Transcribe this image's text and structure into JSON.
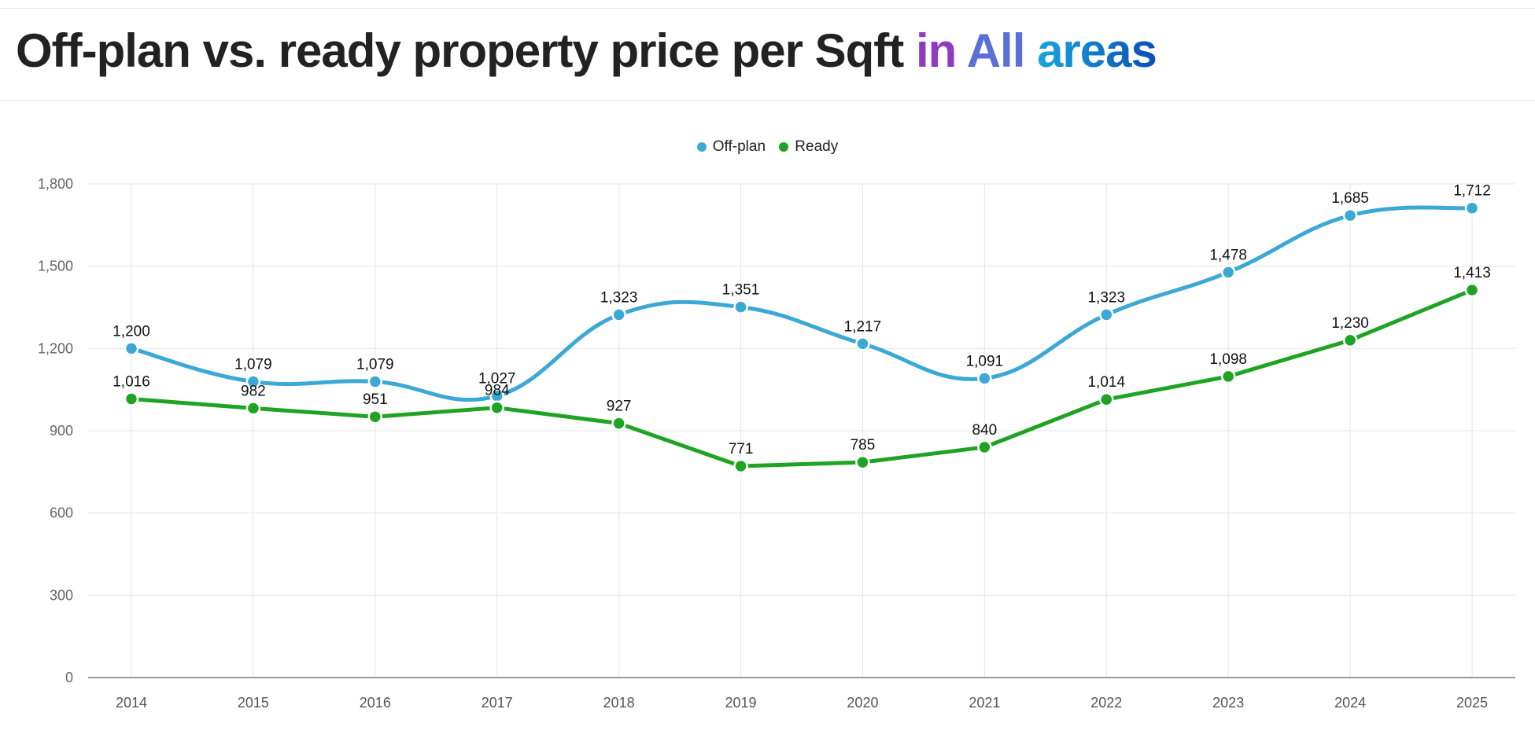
{
  "header": {
    "title_main": "Off-plan vs. ready property price per Sqft",
    "title_in": "in",
    "title_all": "All",
    "title_areas": "areas"
  },
  "chart_data": {
    "type": "line",
    "title": "Off-plan vs. ready property price per Sqft in All areas",
    "xlabel": "",
    "ylabel": "",
    "categories": [
      "2014",
      "2015",
      "2016",
      "2017",
      "2018",
      "2019",
      "2020",
      "2021",
      "2022",
      "2023",
      "2024",
      "2025"
    ],
    "ylim": [
      0,
      1800
    ],
    "yticks": [
      "0",
      "300",
      "600",
      "900",
      "1,200",
      "1,500",
      "1,800"
    ],
    "grid": true,
    "legend_position": "top-center",
    "series": [
      {
        "name": "Off-plan",
        "color": "#3ba8d6",
        "smooth": true,
        "values": [
          1200,
          1079,
          1079,
          1027,
          1323,
          1351,
          1217,
          1091,
          1323,
          1478,
          1685,
          1712
        ],
        "labels": [
          "1,200",
          "1,079",
          "1,079",
          "1,027",
          "1,323",
          "1,351",
          "1,217",
          "1,091",
          "1,323",
          "1,478",
          "1,685",
          "1,712"
        ]
      },
      {
        "name": "Ready",
        "color": "#1fa323",
        "smooth": false,
        "values": [
          1016,
          982,
          951,
          984,
          927,
          771,
          785,
          840,
          1014,
          1098,
          1230,
          1413
        ],
        "labels": [
          "1,016",
          "982",
          "951",
          "984",
          "927",
          "771",
          "785",
          "840",
          "1,014",
          "1,098",
          "1,230",
          "1,413"
        ]
      }
    ]
  }
}
